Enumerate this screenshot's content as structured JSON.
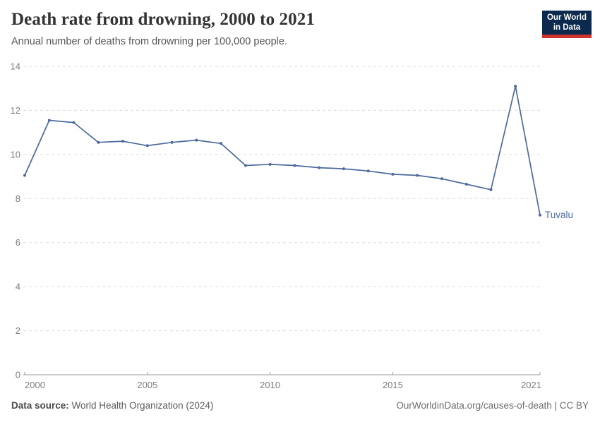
{
  "header": {
    "title": "Death rate from drowning, 2000 to 2021",
    "subtitle": "Annual number of deaths from drowning per 100,000 people.",
    "logo": {
      "line1": "Our World",
      "line2": "in Data"
    }
  },
  "footer": {
    "source_label": "Data source:",
    "source_value": " World Health Organization (2024)",
    "attribution": "OurWorldinData.org/causes-of-death | CC BY"
  },
  "colors": {
    "line": "#4c6a9c",
    "entity_label": "#4c6a9c",
    "grid": "#dcdcdc",
    "axis": "#9e9e9e",
    "tick_text": "#7d7d7d",
    "logo_navy": "#0c2a4d",
    "logo_red": "#d0332e"
  },
  "chart_data": {
    "type": "line",
    "title": "Death rate from drowning, 2000 to 2021",
    "subtitle": "Annual number of deaths from drowning per 100,000 people.",
    "xlabel": "",
    "ylabel": "",
    "grid": true,
    "legend_position": "end-of-line-label",
    "x": [
      2000,
      2001,
      2002,
      2003,
      2004,
      2005,
      2006,
      2007,
      2008,
      2009,
      2010,
      2011,
      2012,
      2013,
      2014,
      2015,
      2016,
      2017,
      2018,
      2019,
      2020,
      2021
    ],
    "series": [
      {
        "name": "Tuvalu",
        "values": [
          9.05,
          11.55,
          11.45,
          10.55,
          10.6,
          10.4,
          10.55,
          10.65,
          10.5,
          9.5,
          9.55,
          9.5,
          9.4,
          9.35,
          9.25,
          9.1,
          9.05,
          8.9,
          8.65,
          8.4,
          13.1,
          7.25
        ]
      }
    ],
    "xticks": [
      2000,
      2005,
      2010,
      2015,
      2021
    ],
    "yticks": [
      0,
      2,
      4,
      6,
      8,
      10,
      12,
      14
    ],
    "xlim": [
      2000,
      2021
    ],
    "ylim": [
      0,
      14
    ],
    "entity_label": "Tuvalu"
  }
}
